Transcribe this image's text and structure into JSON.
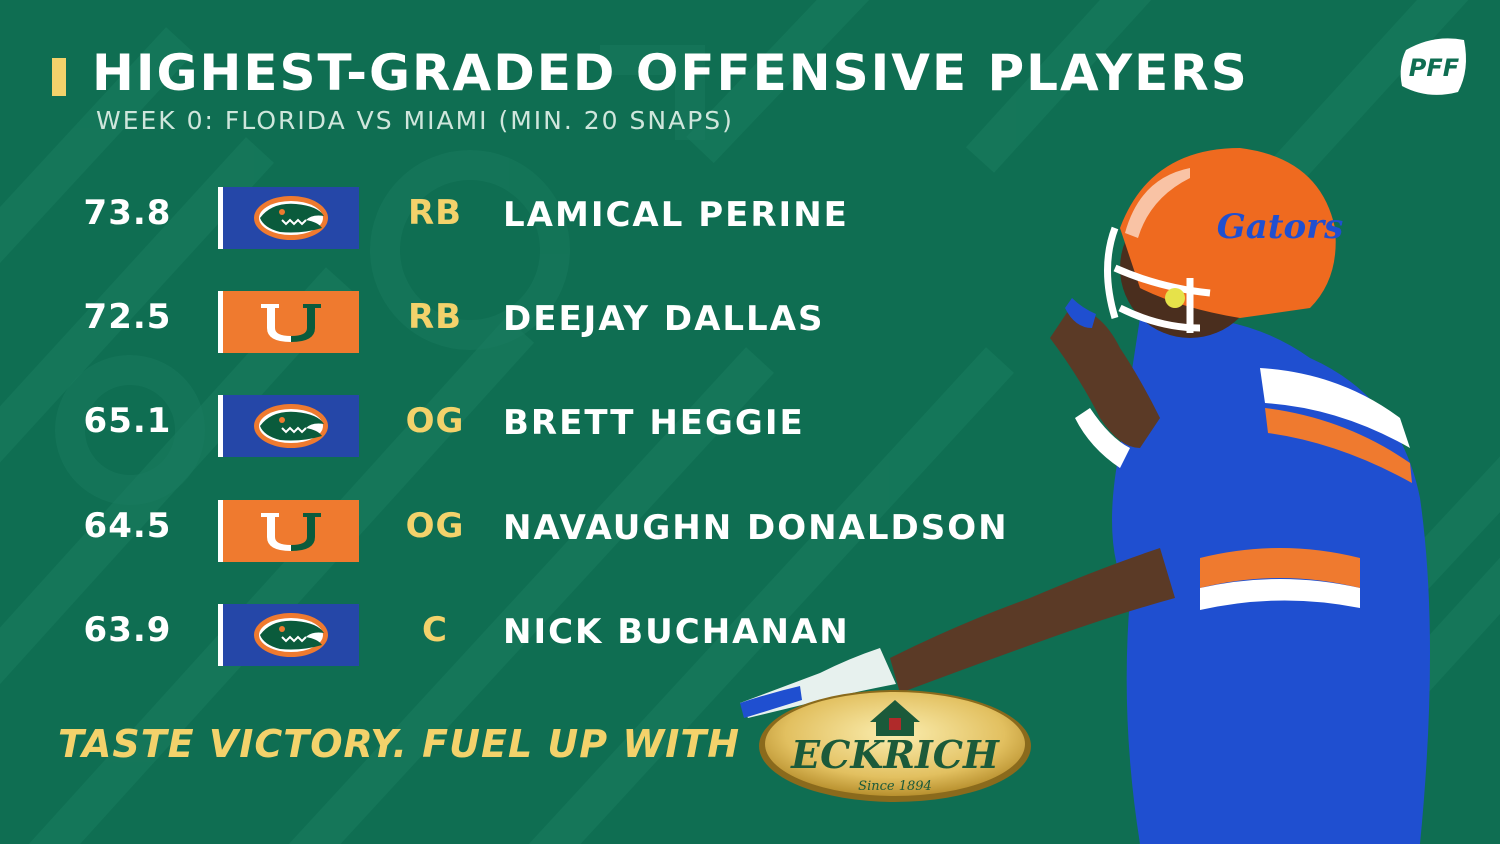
{
  "header": {
    "title": "HIGHEST-GRADED OFFENSIVE PLAYERS",
    "subtitle": "WEEK 0: FLORIDA VS MIAMI (MIN. 20 SNAPS)"
  },
  "brand": {
    "logo_text": "PFF"
  },
  "players": [
    {
      "grade": "73.8",
      "team": "florida",
      "position": "RB",
      "name": "LAMICAL PERINE"
    },
    {
      "grade": "72.5",
      "team": "miami",
      "position": "RB",
      "name": "DEEJAY DALLAS"
    },
    {
      "grade": "65.1",
      "team": "florida",
      "position": "OG",
      "name": "BRETT HEGGIE"
    },
    {
      "grade": "64.5",
      "team": "miami",
      "position": "OG",
      "name": "NAVAUGHN DONALDSON"
    },
    {
      "grade": "63.9",
      "team": "florida",
      "position": "C",
      "name": "NICK BUCHANAN"
    }
  ],
  "sponsor": {
    "tagline": "TASTE VICTORY. FUEL UP WITH",
    "name": "ECKRICH",
    "since": "Since 1894"
  },
  "colors": {
    "background": "#0f6e52",
    "accent_yellow": "#f3d26b",
    "florida_blue": "#2547a8",
    "miami_orange": "#ef7a2f",
    "miami_green": "#0a5b3c"
  },
  "icons": {
    "florida_logo": "gator-head-icon",
    "miami_logo": "miami-u-icon",
    "player_photo": "florida-gators-player-photo"
  }
}
